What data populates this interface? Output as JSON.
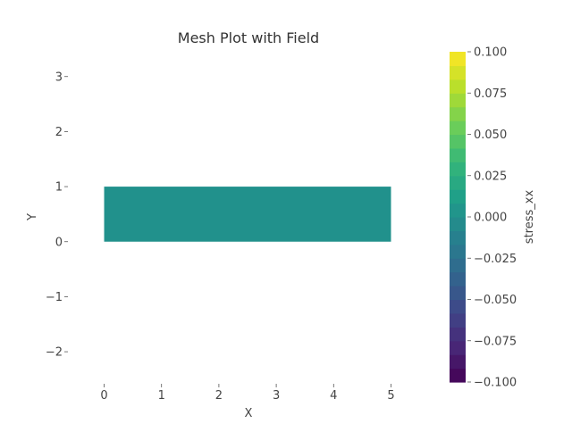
{
  "chart_data": {
    "type": "heatmap",
    "title": "Mesh Plot with Field",
    "xlabel": "X",
    "ylabel": "Y",
    "xlim": [
      -0.6,
      5.6
    ],
    "ylim": [
      -2.55,
      3.45
    ],
    "x_ticks": [
      0,
      1,
      2,
      3,
      4,
      5
    ],
    "y_ticks": [
      -2,
      -1,
      0,
      1,
      2,
      3
    ],
    "x_tick_labels": [
      "0",
      "1",
      "2",
      "3",
      "4",
      "5"
    ],
    "y_tick_labels": [
      "−2",
      "−1",
      "0",
      "1",
      "2",
      "3"
    ],
    "grid": false,
    "mesh": {
      "x_range": [
        0,
        5
      ],
      "y_range": [
        0,
        1
      ],
      "value": 0.0,
      "color": "#21918c"
    },
    "colorbar": {
      "label": "stress_xx",
      "min": -0.1,
      "max": 0.1,
      "ticks": [
        0.1,
        0.075,
        0.05,
        0.025,
        0.0,
        -0.025,
        -0.05,
        -0.075,
        -0.1
      ],
      "tick_labels": [
        "0.100",
        "0.075",
        "0.050",
        "0.025",
        "0.000",
        "−0.025",
        "−0.050",
        "−0.075",
        "−0.100"
      ],
      "colormap": "viridis",
      "levels": 24,
      "colors_stops": [
        "#440154",
        "#482878",
        "#3e4989",
        "#31688e",
        "#26828e",
        "#1f9e89",
        "#35b779",
        "#6ece58",
        "#b5de2b",
        "#fde725"
      ]
    }
  }
}
